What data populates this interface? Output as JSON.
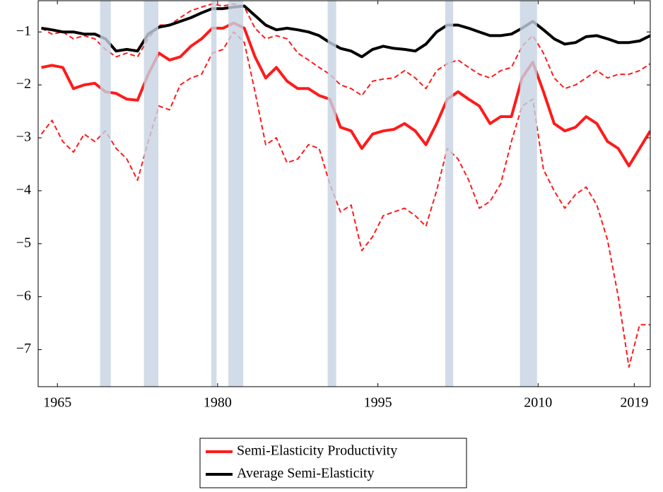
{
  "chart_data": {
    "type": "line",
    "x": [
      1963.5,
      1964.5,
      1965.5,
      1966.5,
      1967.5,
      1968.5,
      1969.5,
      1970.5,
      1971.5,
      1972.5,
      1973.5,
      1974.5,
      1975.5,
      1976.5,
      1977.5,
      1978.5,
      1979.5,
      1980.5,
      1981.5,
      1982.5,
      1983.5,
      1984.5,
      1985.5,
      1986.5,
      1987.5,
      1988.5,
      1989.5,
      1990.5,
      1991.5,
      1992.5,
      1993.5,
      1994.5,
      1995.5,
      1996.5,
      1997.5,
      1998.5,
      1999.5,
      2000.5,
      2001.5,
      2002.5,
      2003.5,
      2004.5,
      2005.5,
      2006.5,
      2007.5,
      2008.5,
      2009.5,
      2010.5,
      2011.5,
      2012.5,
      2013.5,
      2014.5,
      2015.5,
      2016.5,
      2017.5,
      2018.5,
      2019.5,
      2020.5
    ],
    "series": [
      {
        "values": [
          -0.93,
          -1.04,
          -1.0,
          -1.13,
          -1.07,
          -1.13,
          -1.33,
          -1.47,
          -1.4,
          -1.47,
          -1.13,
          -0.87,
          -0.87,
          -0.73,
          -0.6,
          -0.53,
          -0.47,
          -0.51,
          -0.47,
          -0.53,
          -0.93,
          -1.13,
          -1.07,
          -1.13,
          -1.4,
          -1.53,
          -1.67,
          -1.8,
          -2.0,
          -2.07,
          -2.2,
          -1.93,
          -1.89,
          -1.87,
          -1.73,
          -1.87,
          -2.07,
          -1.73,
          -1.6,
          -1.53,
          -1.67,
          -1.8,
          -1.87,
          -1.73,
          -1.67,
          -1.27,
          -1.07,
          -1.4,
          -1.87,
          -2.07,
          -2.0,
          -1.87,
          -1.73,
          -1.87,
          -1.8,
          -1.8,
          -1.73,
          -1.6
        ],
        "color": "#ff1a1a",
        "style": "dashed"
      },
      {
        "values": [
          -2.93,
          -2.67,
          -3.07,
          -3.27,
          -2.93,
          -3.07,
          -2.87,
          -3.2,
          -3.4,
          -3.8,
          -3.07,
          -2.4,
          -2.47,
          -2.0,
          -1.87,
          -1.8,
          -1.4,
          -1.33,
          -1.0,
          -1.2,
          -2.13,
          -3.13,
          -3.0,
          -3.47,
          -3.4,
          -3.13,
          -3.2,
          -3.87,
          -4.4,
          -4.27,
          -5.13,
          -4.87,
          -4.47,
          -4.4,
          -4.33,
          -4.47,
          -4.67,
          -4.0,
          -3.2,
          -3.4,
          -3.8,
          -4.33,
          -4.2,
          -3.87,
          -3.07,
          -2.4,
          -2.27,
          -3.6,
          -4.0,
          -4.33,
          -4.07,
          -3.93,
          -4.27,
          -4.93,
          -6.0,
          -7.33,
          -6.53,
          -6.53
        ],
        "color": "#ff1a1a",
        "style": "dashed"
      },
      {
        "name": "Semi-Elasticity Productivity",
        "values": [
          -1.67,
          -1.63,
          -1.67,
          -2.07,
          -2.0,
          -1.97,
          -2.13,
          -2.16,
          -2.27,
          -2.29,
          -1.8,
          -1.4,
          -1.53,
          -1.47,
          -1.27,
          -1.13,
          -0.93,
          -0.93,
          -0.83,
          -0.93,
          -1.47,
          -1.87,
          -1.67,
          -1.93,
          -2.07,
          -2.07,
          -2.2,
          -2.27,
          -2.8,
          -2.87,
          -3.2,
          -2.93,
          -2.87,
          -2.84,
          -2.73,
          -2.87,
          -3.13,
          -2.73,
          -2.27,
          -2.13,
          -2.27,
          -2.4,
          -2.73,
          -2.6,
          -2.6,
          -1.87,
          -1.57,
          -2.13,
          -2.73,
          -2.87,
          -2.8,
          -2.6,
          -2.73,
          -3.07,
          -3.2,
          -3.53,
          -3.2,
          -2.87
        ],
        "color": "#ff1a1a",
        "style": "solid"
      },
      {
        "name": "Average Semi-Elasticity",
        "values": [
          -0.93,
          -0.96,
          -1.0,
          -1.0,
          -1.04,
          -1.04,
          -1.13,
          -1.36,
          -1.33,
          -1.36,
          -1.04,
          -0.91,
          -0.87,
          -0.8,
          -0.73,
          -0.64,
          -0.56,
          -0.56,
          -0.53,
          -0.51,
          -0.69,
          -0.87,
          -0.96,
          -0.93,
          -0.96,
          -1.0,
          -1.07,
          -1.2,
          -1.31,
          -1.36,
          -1.47,
          -1.33,
          -1.27,
          -1.31,
          -1.33,
          -1.36,
          -1.23,
          -1.0,
          -0.87,
          -0.87,
          -0.93,
          -1.0,
          -1.07,
          -1.07,
          -1.04,
          -0.93,
          -0.8,
          -0.96,
          -1.13,
          -1.23,
          -1.2,
          -1.09,
          -1.07,
          -1.13,
          -1.2,
          -1.2,
          -1.17,
          -1.07
        ],
        "color": "#000000",
        "style": "solid"
      }
    ],
    "shaded_regions": [
      [
        1969.0,
        1970.0
      ],
      [
        1973.1,
        1974.45
      ],
      [
        1979.4,
        1979.9
      ],
      [
        1981.0,
        1982.4
      ],
      [
        1990.3,
        1991.1
      ],
      [
        2001.3,
        2002.05
      ],
      [
        2008.3,
        2009.9
      ]
    ],
    "shade_color": "#c5d3e2",
    "xlim": [
      1963.2,
      2020.5
    ],
    "ylim": [
      -7.7,
      -0.41
    ],
    "xticks": [
      1965,
      1980,
      1995,
      2010,
      2019
    ],
    "yticks": [
      {
        "value": -1,
        "label": "−1"
      },
      {
        "value": -2,
        "label": "−2"
      },
      {
        "value": -3,
        "label": "−3"
      },
      {
        "value": -4,
        "label": "−4"
      },
      {
        "value": -5,
        "label": "−5"
      },
      {
        "value": -6,
        "label": "−6"
      },
      {
        "value": -7,
        "label": "−7"
      }
    ],
    "legend": "bottom"
  }
}
